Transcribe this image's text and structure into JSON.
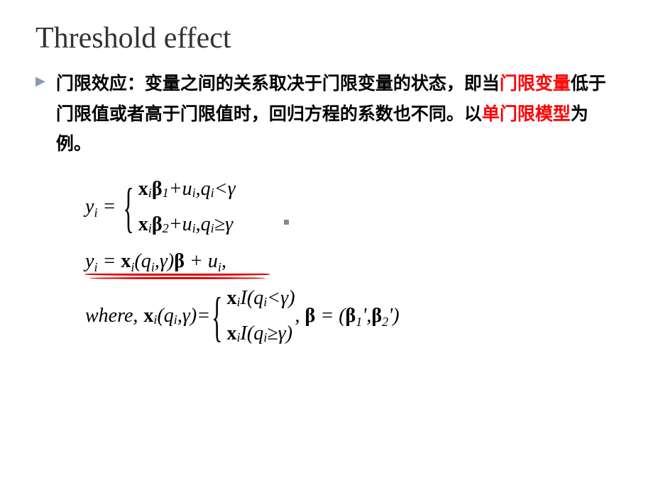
{
  "title": "Threshold effect",
  "bullet": {
    "part1": "门限效应：变量之间的关系取决于门限变量的状态，即当",
    "red1": "门限变量",
    "part2": "低于门限值或者高于门限值时，回归方程的系数也不同。以",
    "red2": "单门限模型",
    "part3": "为例。"
  },
  "math": {
    "y_i": "y",
    "sub_i": "i",
    "equals": " = ",
    "x": "x",
    "beta": "β",
    "sub1": "1",
    "sub2": "2",
    "plus": " + ",
    "u": "u",
    "comma": ",  ",
    "q": "q",
    "lt": " < ",
    "ge": " ≥ ",
    "gamma": "γ",
    "lparen": "(",
    "rparen": ")",
    "where": "where",
    "I": "I",
    "prime": "'",
    "comma2": ",",
    "space_comma": ", ",
    "beta_eq": " = ("
  },
  "styling": {
    "title_color": "#333333",
    "title_fontsize": 42,
    "body_fontsize": 25,
    "body_color": "#000000",
    "red_color": "#ff0000",
    "math_fontsize": 28,
    "bullet_triangle_color": "#8b9bb0",
    "background": "#ffffff",
    "underline_color": "#e00000",
    "body_font": "KaiTi"
  }
}
